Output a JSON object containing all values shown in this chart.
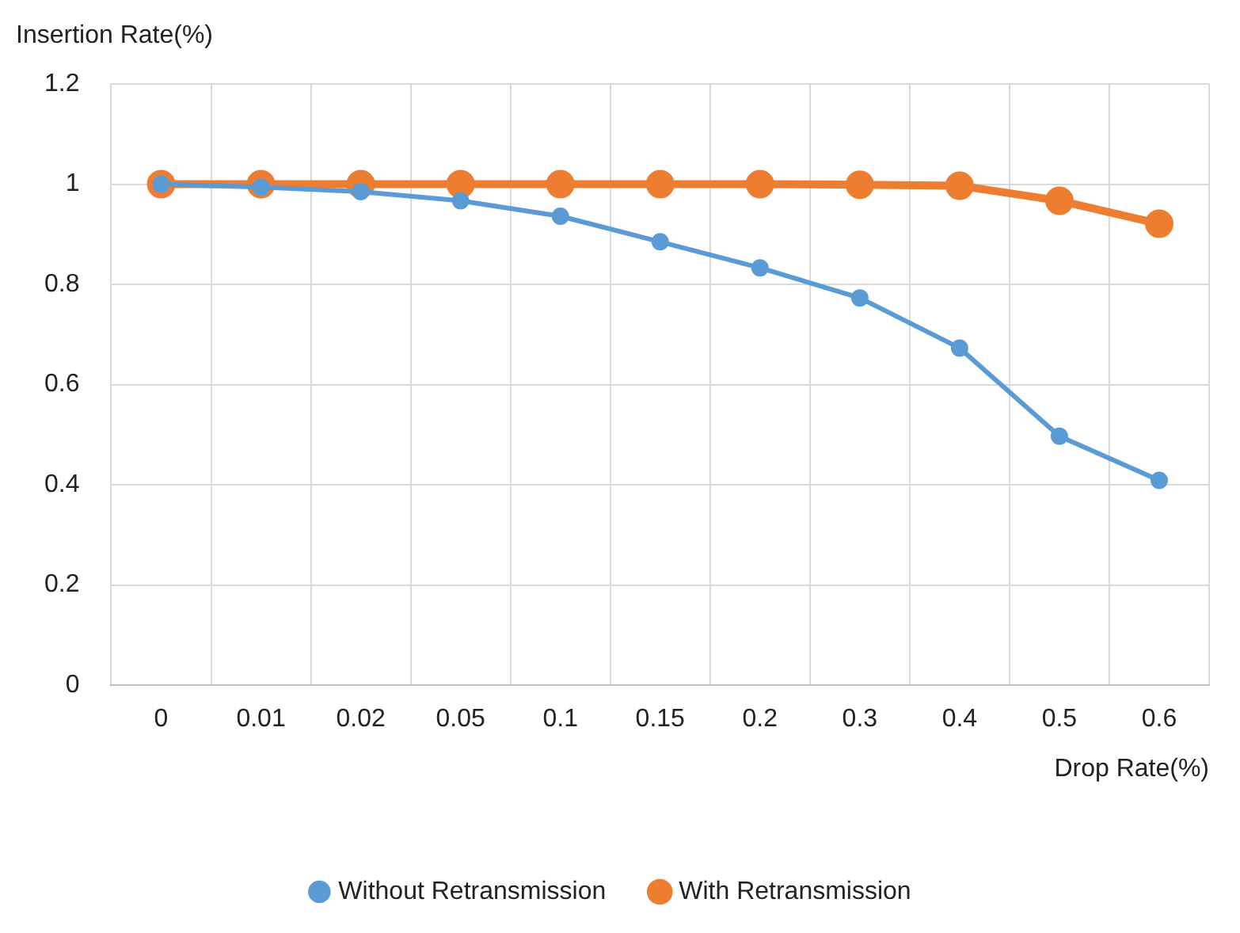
{
  "chart_data": {
    "type": "line",
    "xlabel": "Drop Rate(%)",
    "ylabel": "Insertion Rate(%)",
    "categories": [
      "0",
      "0.01",
      "0.02",
      "0.05",
      "0.1",
      "0.15",
      "0.2",
      "0.3",
      "0.4",
      "0.5",
      "0.6"
    ],
    "series": [
      {
        "name": "Without Retransmission",
        "color": "#5b9bd5",
        "values": [
          1.0,
          0.994,
          0.985,
          0.967,
          0.936,
          0.885,
          0.833,
          0.773,
          0.673,
          0.497,
          0.409
        ]
      },
      {
        "name": "With Retransmission",
        "color": "#ed7d31",
        "values": [
          1.0,
          1.0,
          1.0,
          1.0,
          1.0,
          1.0,
          1.0,
          0.999,
          0.997,
          0.967,
          0.921
        ]
      }
    ],
    "ylim": [
      0,
      1.2
    ],
    "yticks": [
      0,
      0.2,
      0.4,
      0.6,
      0.8,
      1,
      1.2
    ],
    "grid": true,
    "legend": "bottom",
    "marker": "circle",
    "line_style": "solid"
  }
}
